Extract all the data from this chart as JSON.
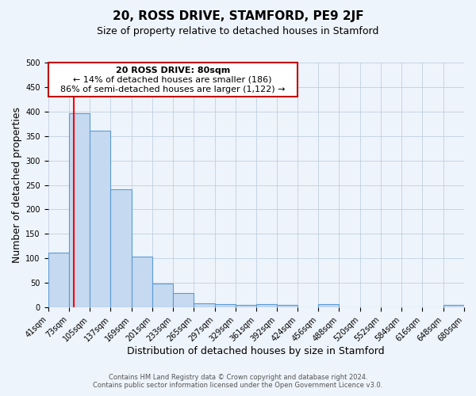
{
  "title": "20, ROSS DRIVE, STAMFORD, PE9 2JF",
  "subtitle": "Size of property relative to detached houses in Stamford",
  "xlabel": "Distribution of detached houses by size in Stamford",
  "ylabel": "Number of detached properties",
  "footer_line1": "Contains HM Land Registry data © Crown copyright and database right 2024.",
  "footer_line2": "Contains public sector information licensed under the Open Government Licence v3.0.",
  "annotation_title": "20 ROSS DRIVE: 80sqm",
  "annotation_line1": "← 14% of detached houses are smaller (186)",
  "annotation_line2": "86% of semi-detached houses are larger (1,122) →",
  "bin_edges": [
    41,
    73,
    105,
    137,
    169,
    201,
    233,
    265,
    297,
    329,
    361,
    392,
    424,
    456,
    488,
    520,
    552,
    584,
    616,
    648,
    680
  ],
  "bin_heights": [
    111,
    397,
    361,
    242,
    103,
    49,
    30,
    9,
    7,
    5,
    7,
    5,
    0,
    6,
    0,
    0,
    0,
    0,
    0,
    5
  ],
  "bar_color": "#c5d9f0",
  "bar_edge_color": "#5b9bd5",
  "red_line_x": 80,
  "ylim": [
    0,
    500
  ],
  "xlim": [
    41,
    680
  ],
  "grid_color": "#c0cfe0",
  "background_color": "#eef4fb",
  "annotation_box_facecolor": "#ffffff",
  "annotation_box_edgecolor": "#c00000",
  "title_fontsize": 11,
  "subtitle_fontsize": 9,
  "tick_label_size": 7,
  "axis_label_size": 9,
  "footer_fontsize": 6,
  "annotation_fontsize": 8
}
